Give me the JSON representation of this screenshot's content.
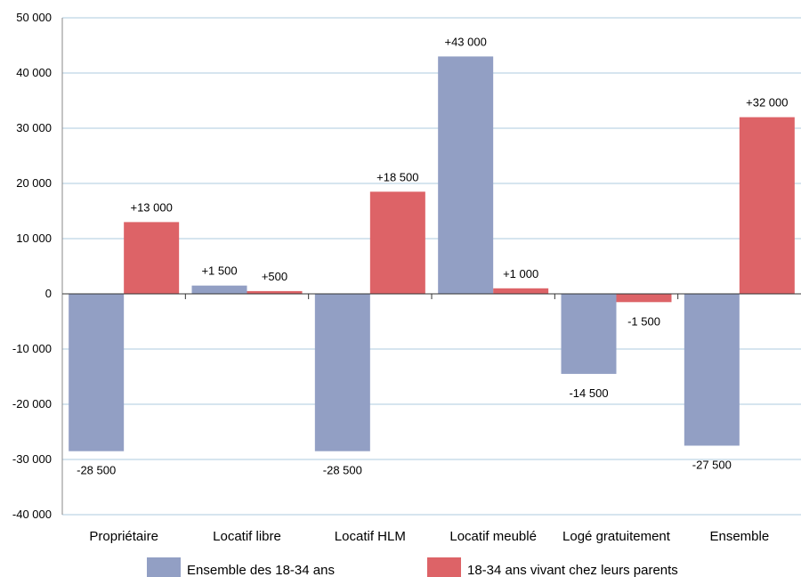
{
  "chart_data": {
    "type": "bar",
    "categories": [
      "Propriétaire",
      "Locatif libre",
      "Locatif HLM",
      "Locatif meublé",
      "Logé gratuitement",
      "Ensemble"
    ],
    "series": [
      {
        "name": "Ensemble des 18-34 ans",
        "values": [
          -28500,
          1500,
          -28500,
          43000,
          -14500,
          -27500
        ],
        "labels": [
          "-28 500",
          "+1 500",
          "-28 500",
          "+43 000",
          "-14 500",
          "-27 500"
        ],
        "color": "#929fc4"
      },
      {
        "name": "18-34 ans vivant chez leurs parents",
        "values": [
          13000,
          500,
          18500,
          1000,
          -1500,
          32000
        ],
        "labels": [
          "+13 000",
          "+500",
          "+18 500",
          "+1 000",
          "-1 500",
          "+32 000"
        ],
        "color": "#dd6367"
      }
    ],
    "yticks": [
      50000,
      40000,
      30000,
      20000,
      10000,
      0,
      -10000,
      -20000,
      -30000,
      -40000
    ],
    "ytick_labels": [
      "50 000",
      "40 000",
      "30 000",
      "20 000",
      "10 000",
      "0",
      "-10 000",
      "-20 000",
      "-30 000",
      "-40 000"
    ],
    "ylim": [
      -40000,
      50000
    ],
    "grid": true,
    "grid_color": "#aecbdf",
    "legend_position": "bottom",
    "title": "",
    "xlabel": "",
    "ylabel": ""
  }
}
